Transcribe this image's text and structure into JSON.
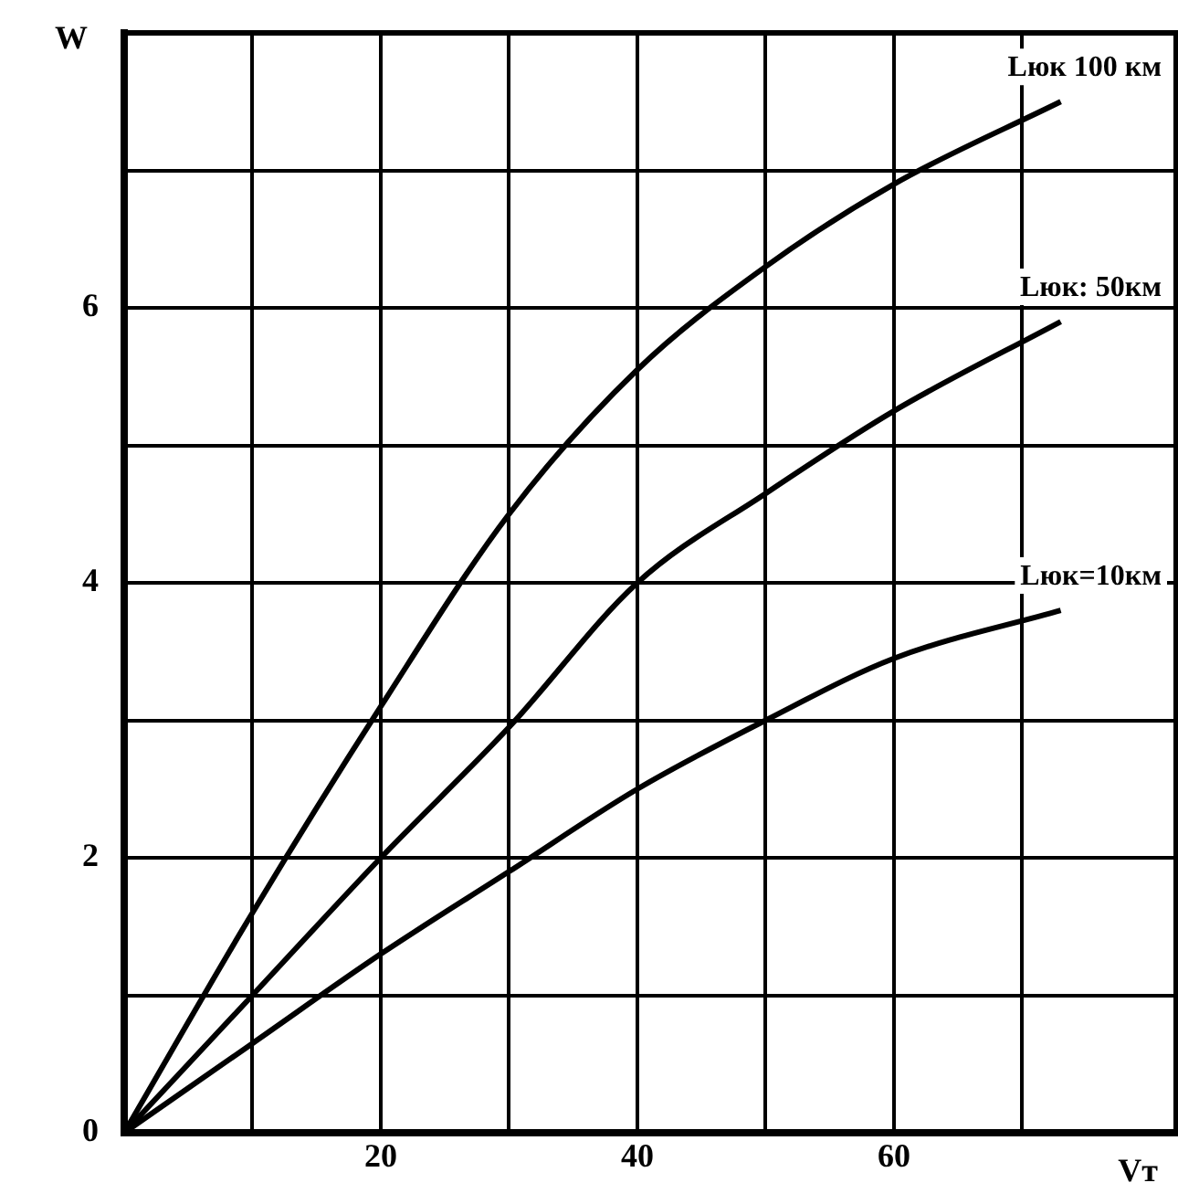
{
  "chart_data": {
    "type": "line",
    "xlabel": "Vт",
    "ylabel": "W",
    "xlim": [
      0,
      82
    ],
    "ylim": [
      0,
      8
    ],
    "xticks": [
      {
        "value": 0,
        "label": null
      },
      {
        "value": 10,
        "label": null
      },
      20,
      {
        "value": 30,
        "label": null
      },
      40,
      {
        "value": 50,
        "label": null
      },
      60,
      {
        "value": 70,
        "label": null
      }
    ],
    "yticks": [
      0,
      {
        "value": 1,
        "label": null
      },
      2,
      {
        "value": 3,
        "label": null
      },
      4,
      {
        "value": 5,
        "label": null
      },
      6,
      {
        "value": 7,
        "label": null
      },
      {
        "value": 8,
        "label": null
      }
    ],
    "x": [
      0,
      10,
      20,
      30,
      40,
      50,
      60,
      73
    ],
    "series": [
      {
        "name": "Lюк 100 км",
        "color": "#000000",
        "values": [
          0,
          1.6,
          3.1,
          4.5,
          5.55,
          6.3,
          6.9,
          7.5
        ]
      },
      {
        "name": "Lюк: 50км",
        "color": "#000000",
        "values": [
          0,
          1.0,
          2.0,
          2.95,
          4.0,
          4.65,
          5.25,
          5.9
        ]
      },
      {
        "name": "Lюк=10км",
        "color": "#000000",
        "values": [
          0,
          0.65,
          1.3,
          1.9,
          2.5,
          3.0,
          3.45,
          3.8
        ]
      }
    ],
    "grid": true,
    "legend": false,
    "marker": "none",
    "line_style": "solid"
  }
}
